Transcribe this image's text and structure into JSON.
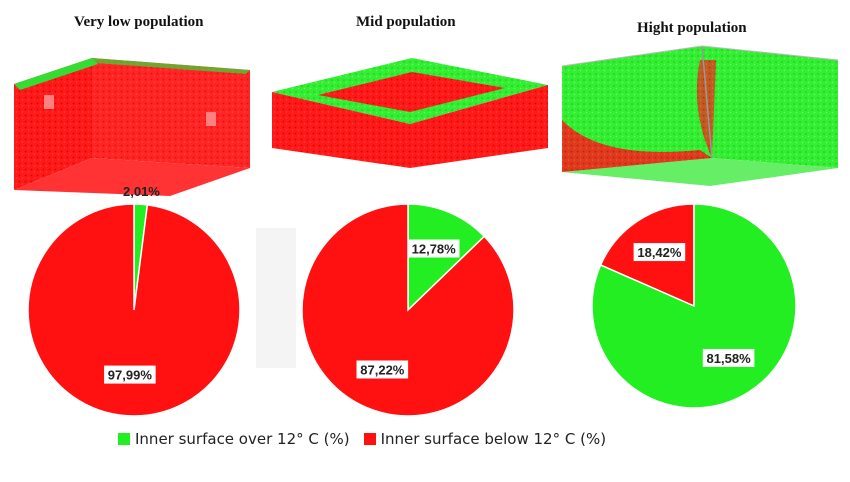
{
  "colors": {
    "over": "#22ee22",
    "below": "#ff1111"
  },
  "chart_data": [
    {
      "type": "pie",
      "title": "Very low population",
      "slices": [
        {
          "label": "Inner surface over 12° C (%)",
          "value": 2.01,
          "text": "2,01%"
        },
        {
          "label": "Inner surface below 12° C (%)",
          "value": 97.99,
          "text": "97,99%"
        }
      ]
    },
    {
      "type": "pie",
      "title": "Mid population",
      "slices": [
        {
          "label": "Inner surface over 12° C (%)",
          "value": 12.78,
          "text": "12,78%"
        },
        {
          "label": "Inner surface below 12° C (%)",
          "value": 87.22,
          "text": "87,22%"
        }
      ]
    },
    {
      "type": "pie",
      "title": "Hight population",
      "slices": [
        {
          "label": "Inner surface over 12° C (%)",
          "value": 81.58,
          "text": "81,58%"
        },
        {
          "label": "Inner surface below 12° C (%)",
          "value": 18.42,
          "text": "18,42%"
        }
      ]
    }
  ],
  "legend": [
    {
      "label": "Inner surface over 12° C (%)",
      "color": "#22ee22"
    },
    {
      "label": "Inner surface below 12° C (%)",
      "color": "#ff1111"
    }
  ]
}
